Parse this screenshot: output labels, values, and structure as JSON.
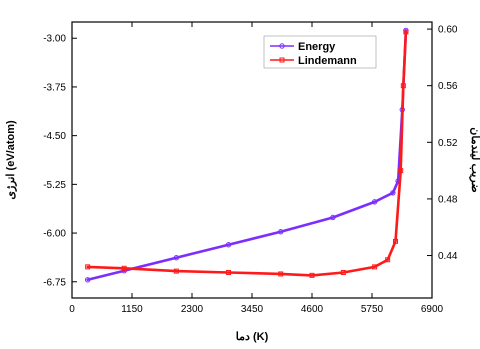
{
  "chart_data": {
    "type": "line",
    "xlabel": "دما (K)",
    "ylabel_left": "انرژی (eV/atom)",
    "ylabel_right": "ضریب لیندمان",
    "xlim": [
      0,
      6900
    ],
    "ylim_left": [
      -7.0,
      -2.75
    ],
    "ylim_right": [
      0.41,
      0.605
    ],
    "xticks": [
      "0",
      "1150",
      "2300",
      "3450",
      "4600",
      "5750",
      "6900"
    ],
    "yticks_left": [
      "-3.00",
      "-3.75",
      "-4.50",
      "-5.25",
      "-6.00",
      "-6.75"
    ],
    "yticks_right": [
      "0.60",
      "0.56",
      "0.52",
      "0.48",
      "0.44"
    ],
    "legend_position": "top-right",
    "grid": false,
    "series": [
      {
        "name": "Energy",
        "axis": "left",
        "color": "#7b2fff",
        "x": [
          300,
          1000,
          2000,
          3000,
          4000,
          5000,
          5800,
          6150,
          6250,
          6330,
          6400
        ],
        "y": [
          -6.72,
          -6.58,
          -6.38,
          -6.18,
          -5.98,
          -5.76,
          -5.52,
          -5.38,
          -5.2,
          -4.1,
          -2.88
        ]
      },
      {
        "name": "Lindemann",
        "axis": "right",
        "color": "#ff1a1a",
        "x": [
          300,
          1000,
          2000,
          3000,
          4000,
          4600,
          5200,
          5800,
          6050,
          6200,
          6300,
          6350,
          6400
        ],
        "y": [
          0.432,
          0.431,
          0.429,
          0.428,
          0.427,
          0.426,
          0.428,
          0.432,
          0.437,
          0.45,
          0.5,
          0.56,
          0.598
        ]
      }
    ]
  }
}
